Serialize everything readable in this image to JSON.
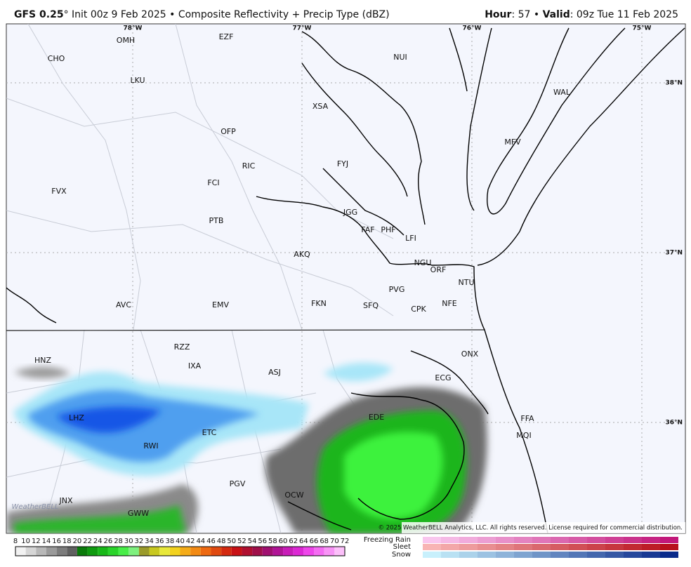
{
  "header": {
    "left": [
      {
        "text": "GFS 0.25",
        "bold": true
      },
      {
        "text": "°"
      },
      {
        "text": " Init 00z 9 Feb 2025 • Composite Reflectivity + Precip Type (dBZ)"
      }
    ],
    "right": [
      {
        "text": "Hour",
        "bold": true
      },
      {
        "text": ": 57 • "
      },
      {
        "text": "Valid",
        "bold": true
      },
      {
        "text": ": 09z Tue 11 Feb 2025"
      }
    ]
  },
  "map": {
    "stations": [
      "OMH",
      "EZF",
      "CHO",
      "NUI",
      "LKU",
      "XSA",
      "WAL",
      "OFP",
      "MFV",
      "RIC",
      "FYJ",
      "FCI",
      "FVX",
      "JGG",
      "PTB",
      "FAF",
      "PHF",
      "LFI",
      "AKQ",
      "NGU",
      "ORF",
      "NTU",
      "PVG",
      "AVC",
      "EMV",
      "FKN",
      "SFQ",
      "CPK",
      "NFE",
      "RZZ",
      "ONX",
      "HNZ",
      "IXA",
      "ASJ",
      "ECG",
      "EDE",
      "FFA",
      "LHZ",
      "ETC",
      "MQI",
      "RWI",
      "PGV",
      "OCW",
      "JNX",
      "GWW"
    ],
    "lon_labels": [
      "78°W",
      "77°W",
      "76°W",
      "75°W"
    ],
    "lat_labels": [
      "38°N",
      "37°N",
      "36°N"
    ],
    "logo": "WeatherBELL",
    "copyright": "© 2025 WeatherBELL Analytics, LLC. All rights reserved. License required for commercial distribution."
  },
  "legend": {
    "dbz_ticks": [
      8,
      10,
      12,
      14,
      16,
      18,
      20,
      22,
      24,
      26,
      28,
      30,
      32,
      34,
      36,
      38,
      40,
      42,
      44,
      46,
      48,
      50,
      52,
      54,
      56,
      58,
      60,
      62,
      64,
      66,
      68,
      70,
      72
    ],
    "types": [
      "Freezing Rain",
      "Sleet",
      "Snow"
    ]
  }
}
